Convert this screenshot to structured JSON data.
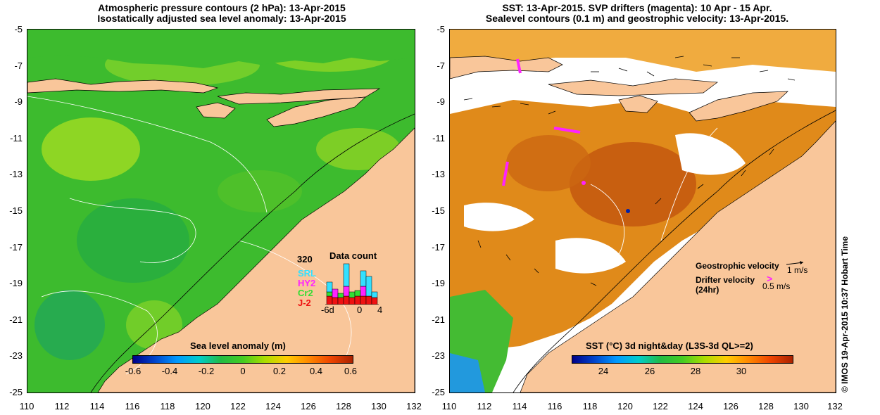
{
  "left_panel": {
    "title_line1": "Atmospheric pressure contours (2 hPa): 13-Apr-2015",
    "title_line2": "Isostatically adjusted sea level anomaly: 13-Apr-2015",
    "colorbar": {
      "label": "Sea level anomaly (m)",
      "ticks": [
        "-0.6",
        "-0.4",
        "-0.2",
        "0",
        "0.2",
        "0.4",
        "0.6"
      ],
      "range": [
        -0.6,
        0.6
      ]
    },
    "data_count": {
      "title": "Data count",
      "max_label": "320",
      "satellites": [
        {
          "name": "SRL",
          "color": "#33e0ff"
        },
        {
          "name": "HY2",
          "color": "#ff22ff"
        },
        {
          "name": "Cr2",
          "color": "#33dd33"
        },
        {
          "name": "J-2",
          "color": "#ee1111"
        }
      ],
      "x_ticks": [
        "-6d",
        "0",
        "4"
      ]
    }
  },
  "right_panel": {
    "title_line1": "SST: 13-Apr-2015. SVP drifters (magenta): 10 Apr - 15 Apr.",
    "title_line2": "Sealevel contours (0.1 m) and geostrophic velocity: 13-Apr-2015.",
    "colorbar": {
      "label": "SST (°C) 3d night&day (L3S-3d QL>=2)",
      "ticks": [
        "24",
        "26",
        "28",
        "30"
      ],
      "range": [
        22.8,
        32.4
      ]
    },
    "legend": {
      "geostrophic": "Geostrophic velocity",
      "geostrophic_scale": "1 m/s",
      "drifter_line1": "Drifter velocity",
      "drifter_line2": "(24hr)",
      "drifter_scale": "0.5 m/s"
    }
  },
  "axes": {
    "lat_ticks": [
      "-5",
      "-7",
      "-9",
      "-11",
      "-13",
      "-15",
      "-17",
      "-19",
      "-21",
      "-23",
      "-25"
    ],
    "lon_ticks": [
      "110",
      "112",
      "114",
      "116",
      "118",
      "120",
      "122",
      "124",
      "126",
      "128",
      "130",
      "132"
    ],
    "lat_range": [
      -25,
      -5
    ],
    "lon_range": [
      110,
      132
    ]
  },
  "credit": "© IMOS 19-Apr-2015 10:37 Hobart Time",
  "colors": {
    "land": "#f9c69a",
    "ocean_green": "#44bb33",
    "sst_orange": "#e08a1a",
    "drifter_magenta": "#ff22ff"
  }
}
